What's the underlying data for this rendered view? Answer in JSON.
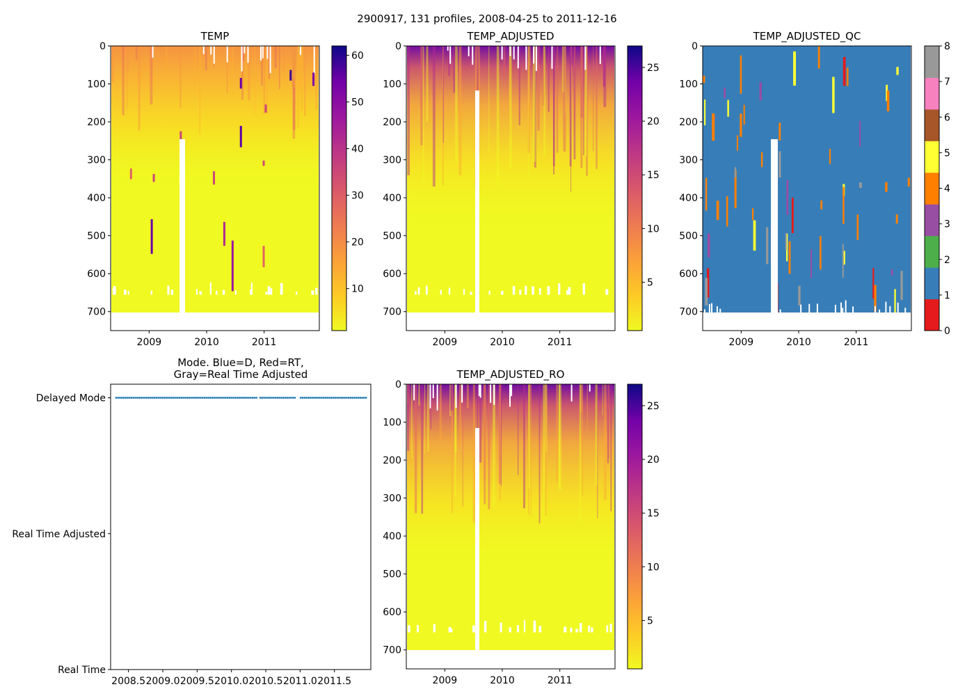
{
  "suptitle": "2900917, 131 profiles, 2008-04-25 to 2011-12-16",
  "chart_data": [
    {
      "id": "temp",
      "type": "heatmap",
      "title": "TEMP",
      "x_ticks": [
        {
          "value": 2009,
          "label": "2009"
        },
        {
          "value": 2010,
          "label": "2010"
        },
        {
          "value": 2011,
          "label": "2011"
        }
      ],
      "y_ticks": [
        {
          "value": 0,
          "label": "0"
        },
        {
          "value": 100,
          "label": "100"
        },
        {
          "value": 200,
          "label": "200"
        },
        {
          "value": 300,
          "label": "300"
        },
        {
          "value": 400,
          "label": "400"
        },
        {
          "value": 500,
          "label": "500"
        },
        {
          "value": 600,
          "label": "600"
        },
        {
          "value": 700,
          "label": "700"
        }
      ],
      "xlim": [
        2008.33,
        2011.96
      ],
      "ylim": [
        750,
        0
      ],
      "colormap": "plasma_r",
      "colorbar": {
        "range": [
          1,
          62
        ],
        "ticks": [
          {
            "value": 10,
            "label": "10"
          },
          {
            "value": 20,
            "label": "20"
          },
          {
            "value": 30,
            "label": "30"
          },
          {
            "value": 40,
            "label": "40"
          },
          {
            "value": 50,
            "label": "50"
          },
          {
            "value": 60,
            "label": "60"
          }
        ]
      },
      "surface_value": 16,
      "outlier_value": 55,
      "max_depth": 700
    },
    {
      "id": "temp-adjusted",
      "type": "heatmap",
      "title": "TEMP_ADJUSTED",
      "x_ticks": [
        {
          "value": 2009,
          "label": "2009"
        },
        {
          "value": 2010,
          "label": "2010"
        },
        {
          "value": 2011,
          "label": "2011"
        }
      ],
      "y_ticks": [
        {
          "value": 0,
          "label": "0"
        },
        {
          "value": 100,
          "label": "100"
        },
        {
          "value": 200,
          "label": "200"
        },
        {
          "value": 300,
          "label": "300"
        },
        {
          "value": 400,
          "label": "400"
        },
        {
          "value": 500,
          "label": "500"
        },
        {
          "value": 600,
          "label": "600"
        },
        {
          "value": 700,
          "label": "700"
        }
      ],
      "xlim": [
        2008.33,
        2011.96
      ],
      "ylim": [
        750,
        0
      ],
      "colormap": "plasma_r",
      "colorbar": {
        "range": [
          0.5,
          27
        ],
        "ticks": [
          {
            "value": 5,
            "label": "5"
          },
          {
            "value": 10,
            "label": "10"
          },
          {
            "value": 15,
            "label": "15"
          },
          {
            "value": 20,
            "label": "20"
          },
          {
            "value": 25,
            "label": "25"
          }
        ]
      },
      "surface_value": 24,
      "max_depth": 700
    },
    {
      "id": "temp-adjusted-qc",
      "type": "heatmap",
      "title": "TEMP_ADJUSTED_QC",
      "x_ticks": [
        {
          "value": 2009,
          "label": "2009"
        },
        {
          "value": 2010,
          "label": "2010"
        },
        {
          "value": 2011,
          "label": "2011"
        }
      ],
      "y_ticks": [
        {
          "value": 0,
          "label": "0"
        },
        {
          "value": 100,
          "label": "100"
        },
        {
          "value": 200,
          "label": "200"
        },
        {
          "value": 300,
          "label": "300"
        },
        {
          "value": 400,
          "label": "400"
        },
        {
          "value": 500,
          "label": "500"
        },
        {
          "value": 600,
          "label": "600"
        },
        {
          "value": 700,
          "label": "700"
        }
      ],
      "xlim": [
        2008.33,
        2011.96
      ],
      "ylim": [
        750,
        0
      ],
      "colormap": "categorical",
      "categories": [
        {
          "value": 0,
          "color": "#e41a1c"
        },
        {
          "value": 1,
          "color": "#377eb8"
        },
        {
          "value": 2,
          "color": "#4daf4a"
        },
        {
          "value": 3,
          "color": "#984ea3"
        },
        {
          "value": 4,
          "color": "#ff7f00"
        },
        {
          "value": 5,
          "color": "#ffff33"
        },
        {
          "value": 6,
          "color": "#a65628"
        },
        {
          "value": 7,
          "color": "#f781bf"
        },
        {
          "value": 8,
          "color": "#999999"
        }
      ],
      "colorbar": {
        "range": [
          0,
          8
        ],
        "ticks": [
          {
            "value": 0,
            "label": "0"
          },
          {
            "value": 1,
            "label": "1"
          },
          {
            "value": 2,
            "label": "2"
          },
          {
            "value": 3,
            "label": "3"
          },
          {
            "value": 4,
            "label": "4"
          },
          {
            "value": 5,
            "label": "5"
          },
          {
            "value": 6,
            "label": "6"
          },
          {
            "value": 7,
            "label": "7"
          },
          {
            "value": 8,
            "label": "8"
          }
        ]
      },
      "dominant_value": 1,
      "max_depth": 700
    },
    {
      "id": "mode",
      "type": "scatter",
      "title_lines": [
        "Mode. Blue=D, Red=RT,",
        "Gray=Real Time Adjusted"
      ],
      "x_ticks": [
        {
          "value": 2008.5,
          "label": "2008.5"
        },
        {
          "value": 2009.0,
          "label": "2009.0"
        },
        {
          "value": 2009.5,
          "label": "2009.5"
        },
        {
          "value": 2010.0,
          "label": "2010.0"
        },
        {
          "value": 2010.5,
          "label": "2010.5"
        },
        {
          "value": 2011.0,
          "label": "2011.0"
        },
        {
          "value": 2011.5,
          "label": "2011.5"
        }
      ],
      "y_ticks": [
        {
          "value": 2,
          "label": "Delayed Mode"
        },
        {
          "value": 1,
          "label": "Real Time Adjusted"
        },
        {
          "value": 0,
          "label": "Real Time"
        }
      ],
      "xlim": [
        2008.24,
        2012.03
      ],
      "ylim": [
        0,
        2.1
      ],
      "series": [
        {
          "name": "Delayed Mode",
          "y": 2,
          "color": "#1f77b4",
          "x_start": 2008.32,
          "x_end": 2011.96,
          "count": 131,
          "gaps": [
            [
              2010.38,
              2010.41
            ],
            [
              2010.93,
              2011.0
            ]
          ]
        }
      ]
    },
    {
      "id": "temp-adjusted-ro",
      "type": "heatmap",
      "title": "TEMP_ADJUSTED_RO",
      "x_ticks": [
        {
          "value": 2009,
          "label": "2009"
        },
        {
          "value": 2010,
          "label": "2010"
        },
        {
          "value": 2011,
          "label": "2011"
        }
      ],
      "y_ticks": [
        {
          "value": 0,
          "label": "0"
        },
        {
          "value": 100,
          "label": "100"
        },
        {
          "value": 200,
          "label": "200"
        },
        {
          "value": 300,
          "label": "300"
        },
        {
          "value": 400,
          "label": "400"
        },
        {
          "value": 500,
          "label": "500"
        },
        {
          "value": 600,
          "label": "600"
        },
        {
          "value": 700,
          "label": "700"
        }
      ],
      "xlim": [
        2008.33,
        2011.96
      ],
      "ylim": [
        750,
        0
      ],
      "colormap": "plasma_r",
      "colorbar": {
        "range": [
          0.5,
          27
        ],
        "ticks": [
          {
            "value": 5,
            "label": "5"
          },
          {
            "value": 10,
            "label": "10"
          },
          {
            "value": 15,
            "label": "15"
          },
          {
            "value": 20,
            "label": "20"
          },
          {
            "value": 25,
            "label": "25"
          }
        ]
      },
      "surface_value": 24,
      "max_depth": 700
    }
  ]
}
